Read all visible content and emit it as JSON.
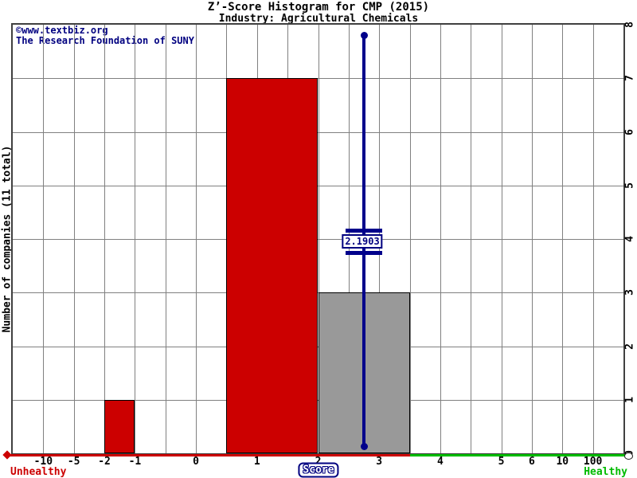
{
  "chart_data": {
    "type": "histogram",
    "title": "Z’-Score Histogram for CMP (2015)",
    "subtitle": "Industry: Agricultural Chemicals",
    "watermark": {
      "line1": "©www.textbiz.org",
      "line2": "The Research Foundation of SUNY"
    },
    "ylabel": "Number of companies (11 total)",
    "xlabel": "Score",
    "total_companies": 11,
    "x_axis_left_label": "Unhealthy",
    "x_axis_right_label": "Healthy",
    "ylim": [
      0,
      8
    ],
    "y_ticks": [
      0,
      1,
      2,
      3,
      4,
      5,
      6,
      7,
      8
    ],
    "n_segments": 20,
    "x_ticks": [
      {
        "label": "-10",
        "seg": 1
      },
      {
        "label": "-5",
        "seg": 2
      },
      {
        "label": "-2",
        "seg": 3
      },
      {
        "label": "-1",
        "seg": 4
      },
      {
        "label": "0",
        "seg": 6
      },
      {
        "label": "1",
        "seg": 8
      },
      {
        "label": "2",
        "seg": 10
      },
      {
        "label": "3",
        "seg": 12
      },
      {
        "label": "4",
        "seg": 14
      },
      {
        "label": "5",
        "seg": 16
      },
      {
        "label": "6",
        "seg": 17
      },
      {
        "label": "10",
        "seg": 18
      },
      {
        "label": "100",
        "seg": 19
      }
    ],
    "bars": [
      {
        "range_label": "-2 to -1",
        "count": 1,
        "seg_from": 3,
        "seg_to": 4,
        "color": "#cc0000",
        "status": "unhealthy"
      },
      {
        "range_label": "1 to 2",
        "count": 7,
        "seg_from": 7,
        "seg_to": 10,
        "color": "#cc0000",
        "status": "unhealthy"
      },
      {
        "range_label": "2 to 3",
        "count": 3,
        "seg_from": 10,
        "seg_to": 13,
        "color": "#999999",
        "status": "neutral"
      }
    ],
    "marker": {
      "value": "2.1903"
    },
    "axis_split_seg": 13,
    "colors": {
      "unhealthy": "#cc0000",
      "healthy": "#00bb00",
      "neutral": "#999999",
      "marker": "#00008b",
      "grid": "#808080",
      "border": "#404040",
      "text_navy": "#000080"
    }
  }
}
